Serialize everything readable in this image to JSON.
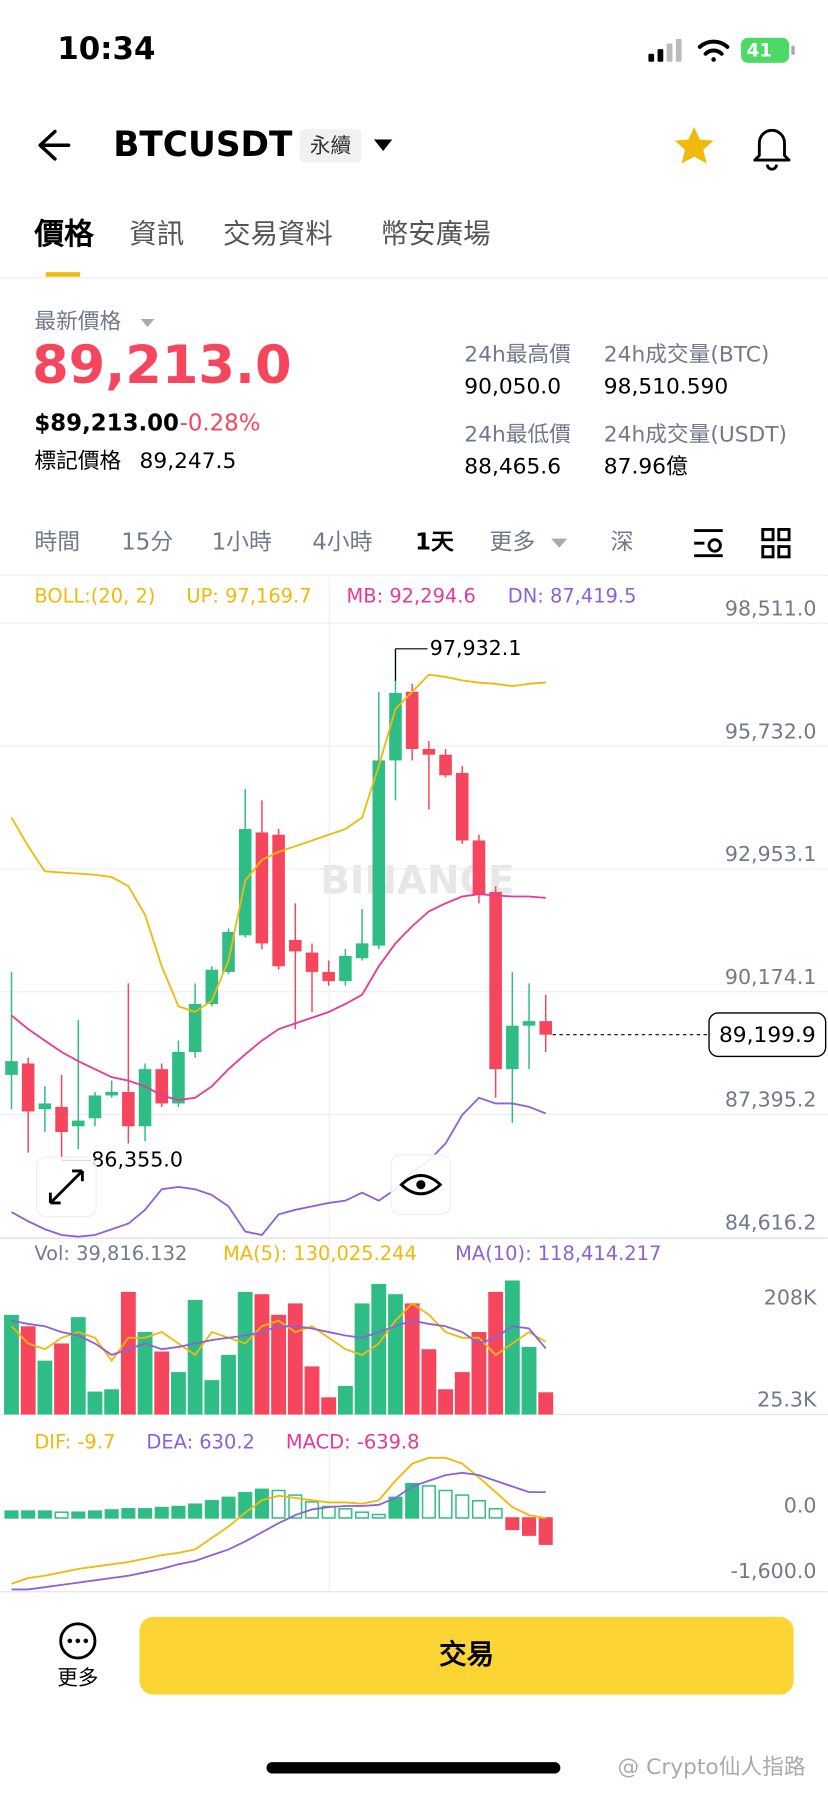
{
  "status_bar": {
    "time": "10:34",
    "battery": "41"
  },
  "header": {
    "symbol": "BTCUSDT",
    "badge": "永續"
  },
  "tabs": [
    "價格",
    "資訊",
    "交易資料",
    "幣安廣場"
  ],
  "price_panel": {
    "label": "最新價格",
    "last": "89,213.0",
    "usd": "$89,213.00",
    "change": "-0.28%",
    "mark_label": "標記價格",
    "mark": "89,247.5",
    "stats": [
      {
        "label": "24h最高價",
        "value": "90,050.0"
      },
      {
        "label": "24h成交量(BTC)",
        "value": "98,510.590"
      },
      {
        "label": "24h最低價",
        "value": "88,465.6"
      },
      {
        "label": "24h成交量(USDT)",
        "value": "87.96億"
      }
    ]
  },
  "intervals": [
    "時間",
    "15分",
    "1小時",
    "4小時",
    "1天",
    "更多",
    "深"
  ],
  "chart_data": [
    {
      "type": "candlestick",
      "indicator": "BOLL:(20, 2)",
      "watermark": "BINANCE",
      "up_color": "#2ebd85",
      "down_color": "#f6465d",
      "open": [
        88291,
        88549,
        87514,
        87566,
        87127,
        87308,
        87825,
        87903,
        87127,
        88420,
        87644,
        88808,
        89895,
        90620,
        91447,
        93776,
        93724,
        91344,
        91059,
        90620,
        90413,
        90930,
        91215,
        95406,
        96959,
        95665,
        95535,
        95121,
        93595,
        92431,
        88420,
        89403,
        89507
      ],
      "high": [
        90620,
        88679,
        88032,
        88291,
        89533,
        87903,
        88161,
        90361,
        88549,
        88549,
        89067,
        90361,
        90749,
        91603,
        94759,
        94501,
        93854,
        92172,
        91266,
        90878,
        91137,
        92043,
        96959,
        97932.1,
        97140,
        95846,
        95665,
        95277,
        93724,
        92560,
        90620,
        90361,
        90102
      ],
      "low": [
        87514,
        86531,
        86997,
        86355,
        86609,
        87127,
        87773,
        86738,
        86790,
        87566,
        87566,
        88679,
        89843,
        90568,
        91396,
        91137,
        90671,
        89326,
        89714,
        90309,
        90309,
        90878,
        91137,
        94501,
        95406,
        94294,
        95018,
        93517,
        92172,
        87773,
        87204,
        88420,
        88808
      ],
      "close": [
        88601,
        87463,
        87644,
        86997,
        87256,
        87825,
        87903,
        87127,
        88420,
        87644,
        88808,
        89895,
        90671,
        91525,
        93854,
        91266,
        90749,
        91085,
        90620,
        90413,
        90982,
        91266,
        95406,
        96933,
        95665,
        95535,
        95070,
        93595,
        92379,
        88420,
        89403,
        89507,
        89199.9
      ],
      "high_label": "97,932.1",
      "low_label": "86,355.0",
      "last_label": "89,199.9",
      "series": [
        {
          "name": "UP: 97,169.7",
          "color": "#f0b90b",
          "values": [
            94112,
            93466,
            92896,
            92870,
            92845,
            92819,
            92767,
            92560,
            91913,
            90749,
            89843,
            89714,
            89973,
            90878,
            92689,
            93155,
            93336,
            93466,
            93595,
            93724,
            93854,
            94112,
            95277,
            96570,
            96959,
            97347,
            97295,
            97217,
            97166,
            97140,
            97088,
            97140,
            97169.7
          ]
        },
        {
          "name": "MB: 92,294.6",
          "color": "#e6399b",
          "values": [
            89636,
            89326,
            89067,
            88808,
            88601,
            88420,
            88239,
            88161,
            88032,
            87825,
            87722,
            87773,
            88032,
            88420,
            88756,
            89067,
            89326,
            89455,
            89584,
            89714,
            89895,
            90102,
            90749,
            91266,
            91655,
            91991,
            92172,
            92327,
            92379,
            92353,
            92327,
            92327,
            92294.6
          ]
        },
        {
          "name": "DN: 87,419.5",
          "color": "#8e62d4",
          "values": [
            85186,
            84979,
            84797,
            84668,
            84630,
            84668,
            84797,
            84927,
            85237,
            85704,
            85755,
            85704,
            85574,
            85315,
            84746,
            84668,
            85134,
            85237,
            85315,
            85393,
            85444,
            85625,
            85444,
            85704,
            86091,
            86350,
            86738,
            87385,
            87773,
            87644,
            87644,
            87566,
            87419.5
          ]
        }
      ],
      "ylim": [
        84616.2,
        98511.0
      ],
      "yticks": [
        {
          "value": 98511.0,
          "label": "98,511.0"
        },
        {
          "value": 95732.0,
          "label": "95,732.0"
        },
        {
          "value": 92953.1,
          "label": "92,953.1"
        },
        {
          "value": 90174.1,
          "label": "90,174.1"
        },
        {
          "value": 87395.2,
          "label": "87,395.2"
        },
        {
          "value": 84616.2,
          "label": "84,616.2"
        }
      ],
      "grid": true
    },
    {
      "type": "volume",
      "name": "Vol: 39,816.132",
      "values": [
        178600,
        158100,
        96500,
        127300,
        174500,
        41100,
        45200,
        219700,
        147800,
        112900,
        76000,
        205300,
        61600,
        106800,
        219700,
        215600,
        178600,
        199100,
        86200,
        30800,
        51300,
        199100,
        234000,
        215600,
        199100,
        117000,
        45200,
        76000,
        147800,
        219700,
        240200,
        121100,
        39816.132
      ],
      "series": [
        {
          "name": "MA(5): 130,025.244",
          "color": "#f0b90b",
          "values": [
            158100,
            127300,
            117000,
            137600,
            147800,
            137600,
            96500,
            137600,
            137600,
            147800,
            127300,
            106800,
            147800,
            137600,
            127300,
            158100,
            168300,
            147800,
            158100,
            137600,
            117000,
            106800,
            127300,
            168300,
            199100,
            178600,
            147800,
            137600,
            137600,
            106800,
            127300,
            147800,
            130025.244
          ]
        },
        {
          "name": "MA(10): 118,414.217",
          "color": "#8e62d4",
          "values": [
            168300,
            162200,
            158100,
            147800,
            141700,
            127300,
            106800,
            117000,
            127300,
            117000,
            121100,
            127300,
            133400,
            137600,
            141700,
            147800,
            158100,
            158100,
            154000,
            147800,
            141700,
            137600,
            147800,
            158100,
            168300,
            162200,
            158100,
            147800,
            127300,
            137600,
            158100,
            154000,
            118414.217
          ]
        }
      ],
      "ylim": [
        0,
        250000
      ],
      "yticks": [
        {
          "value": 208000,
          "label": "208K"
        },
        {
          "value": 25300,
          "label": "25.3K"
        }
      ]
    },
    {
      "type": "macd",
      "name": "MACD: -639.8",
      "color": "#e6399b",
      "values": [
        167,
        167,
        167,
        140,
        140,
        167,
        195,
        223,
        223,
        251,
        279,
        335,
        419,
        502,
        614,
        698,
        670,
        558,
        391,
        279,
        223,
        140,
        84,
        502,
        837,
        781,
        670,
        558,
        419,
        223,
        -279,
        -419,
        -639.8
      ],
      "series": [
        {
          "name": "DIF: -9.7",
          "color": "#f0b90b",
          "values": [
            -1604,
            -1465,
            -1409,
            -1325,
            -1242,
            -1186,
            -1130,
            -1074,
            -990,
            -907,
            -851,
            -767,
            -488,
            -209,
            126,
            432,
            544,
            488,
            432,
            377,
            377,
            349,
            432,
            907,
            1325,
            1465,
            1465,
            1325,
            990,
            628,
            265,
            70,
            -9.7
          ]
        },
        {
          "name": "DEA: 630.2",
          "color": "#8e62d4",
          "values": [
            -1744,
            -1744,
            -1688,
            -1632,
            -1576,
            -1521,
            -1465,
            -1409,
            -1325,
            -1242,
            -1130,
            -1046,
            -907,
            -767,
            -572,
            -349,
            -126,
            70,
            209,
            265,
            293,
            293,
            321,
            488,
            767,
            907,
            1046,
            1102,
            1046,
            907,
            767,
            628,
            630.2
          ]
        }
      ],
      "ylim": [
        -1800,
        2300
      ],
      "yticks": [
        {
          "value": 0,
          "label": "0.0"
        },
        {
          "value": -1600,
          "label": "-1,600.0"
        }
      ]
    }
  ],
  "bottom_bar": {
    "more": "更多",
    "trade": "交易",
    "watermark": "@ Crypto仙人指路"
  }
}
